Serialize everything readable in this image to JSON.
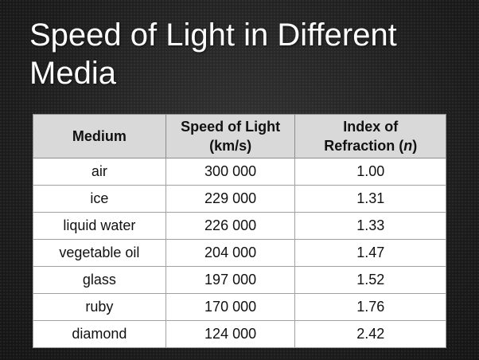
{
  "title": "Speed of Light in Different Media",
  "table": {
    "headers": {
      "medium": "Medium",
      "speed_line1": "Speed of Light",
      "speed_line2": "(km/s)",
      "index_line1": "Index of",
      "index_line2_prefix": "Refraction (",
      "index_symbol": "n",
      "index_line2_suffix": ")"
    },
    "rows": [
      {
        "medium": "air",
        "speed": "300 000",
        "index": "1.00"
      },
      {
        "medium": "ice",
        "speed": "229 000",
        "index": "1.31"
      },
      {
        "medium": "liquid water",
        "speed": "226 000",
        "index": "1.33"
      },
      {
        "medium": "vegetable oil",
        "speed": "204 000",
        "index": "1.47"
      },
      {
        "medium": "glass",
        "speed": "197 000",
        "index": "1.52"
      },
      {
        "medium": "ruby",
        "speed": "170 000",
        "index": "1.76"
      },
      {
        "medium": "diamond",
        "speed": "124 000",
        "index": "2.42"
      }
    ]
  }
}
